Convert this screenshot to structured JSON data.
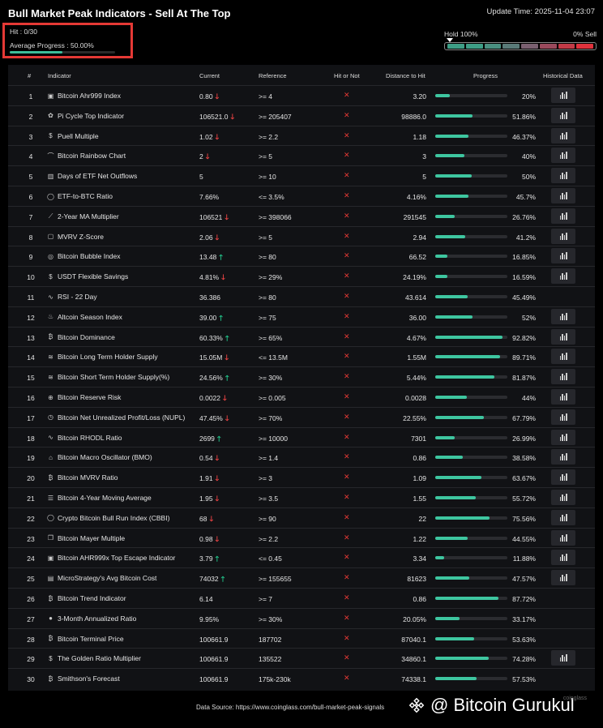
{
  "header": {
    "title": "Bull Market Peak Indicators - Sell At The Top",
    "update_time": "Update Time: 2025-11-04 23:07"
  },
  "summary": {
    "hit": "Hit : 0/30",
    "avg_progress": "Average Progress : 50.00%",
    "avg_progress_value": 50
  },
  "scale": {
    "left_label": "Hold 100%",
    "right_label": "0% Sell",
    "colors": [
      "#3e9e86",
      "#3e9e86",
      "#4a8f80",
      "#5a7a78",
      "#7a6070",
      "#9a4a5c",
      "#c23a46",
      "#e0323c"
    ]
  },
  "table": {
    "headers": [
      "#",
      "Indicator",
      "Current",
      "Reference",
      "Hit or Not",
      "Distance to Hit",
      "Progress",
      "Historical Data"
    ],
    "hit_mark": "✕",
    "rows": [
      {
        "num": "1",
        "icon": "square-logo-icon",
        "name": "Bitcoin Ahr999 Index",
        "current": "0.80",
        "arrow": "down",
        "ref": ">= 4",
        "dist": "3.20",
        "pct_label": "20%",
        "pct": 20,
        "hist": true
      },
      {
        "num": "2",
        "icon": "cycle-icon",
        "name": "Pi Cycle Top Indicator",
        "current": "106521.0",
        "arrow": "down",
        "ref": ">= 205407",
        "dist": "98886.0",
        "pct_label": "51.86%",
        "pct": 51.86,
        "hist": true
      },
      {
        "num": "3",
        "icon": "dollar-icon",
        "name": "Puell Multiple",
        "current": "1.02",
        "arrow": "down",
        "ref": ">= 2.2",
        "dist": "1.18",
        "pct_label": "46.37%",
        "pct": 46.37,
        "hist": true
      },
      {
        "num": "4",
        "icon": "rainbow-icon",
        "name": "Bitcoin Rainbow Chart",
        "current": "2",
        "arrow": "down",
        "ref": ">= 5",
        "dist": "3",
        "pct_label": "40%",
        "pct": 40,
        "hist": true
      },
      {
        "num": "5",
        "icon": "bar-chart-icon",
        "name": "Days of ETF Net Outflows",
        "current": "5",
        "arrow": "",
        "ref": ">= 10",
        "dist": "5",
        "pct_label": "50%",
        "pct": 50,
        "hist": true
      },
      {
        "num": "6",
        "icon": "circle-icon",
        "name": "ETF-to-BTC Ratio",
        "current": "7.66%",
        "arrow": "",
        "ref": "<= 3.5%",
        "dist": "4.16%",
        "pct_label": "45.7%",
        "pct": 45.7,
        "hist": true
      },
      {
        "num": "7",
        "icon": "line-chart-icon",
        "name": "2-Year MA Multiplier",
        "current": "106521",
        "arrow": "down",
        "ref": ">= 398066",
        "dist": "291545",
        "pct_label": "26.76%",
        "pct": 26.76,
        "hist": true
      },
      {
        "num": "8",
        "icon": "square-icon",
        "name": "MVRV Z-Score",
        "current": "2.06",
        "arrow": "down",
        "ref": ">= 5",
        "dist": "2.94",
        "pct_label": "41.2%",
        "pct": 41.2,
        "hist": true
      },
      {
        "num": "9",
        "icon": "bubble-icon",
        "name": "Bitcoin Bubble Index",
        "current": "13.48",
        "arrow": "up",
        "ref": ">= 80",
        "dist": "66.52",
        "pct_label": "16.85%",
        "pct": 16.85,
        "hist": true
      },
      {
        "num": "10",
        "icon": "dollar-icon",
        "name": "USDT Flexible Savings",
        "current": "4.81%",
        "arrow": "down",
        "ref": ">= 29%",
        "dist": "24.19%",
        "pct_label": "16.59%",
        "pct": 16.59,
        "hist": true
      },
      {
        "num": "11",
        "icon": "pulse-icon",
        "name": "RSI - 22 Day",
        "current": "36.386",
        "arrow": "",
        "ref": ">= 80",
        "dist": "43.614",
        "pct_label": "45.49%",
        "pct": 45.49,
        "hist": false
      },
      {
        "num": "12",
        "icon": "flame-icon",
        "name": "Altcoin Season Index",
        "current": "39.00",
        "arrow": "up",
        "ref": ">= 75",
        "dist": "36.00",
        "pct_label": "52%",
        "pct": 52,
        "hist": true
      },
      {
        "num": "13",
        "icon": "bitcoin-icon",
        "name": "Bitcoin Dominance",
        "current": "60.33%",
        "arrow": "up",
        "ref": ">= 65%",
        "dist": "4.67%",
        "pct_label": "92.82%",
        "pct": 92.82,
        "hist": true
      },
      {
        "num": "14",
        "icon": "database-icon",
        "name": "Bitcoin Long Term Holder Supply",
        "current": "15.05M",
        "arrow": "down",
        "ref": "<= 13.5M",
        "dist": "1.55M",
        "pct_label": "89.71%",
        "pct": 89.71,
        "hist": true
      },
      {
        "num": "15",
        "icon": "database-icon",
        "name": "Bitcoin Short Term Holder Supply(%)",
        "current": "24.56%",
        "arrow": "up",
        "ref": ">= 30%",
        "dist": "5.44%",
        "pct_label": "81.87%",
        "pct": 81.87,
        "hist": true
      },
      {
        "num": "16",
        "icon": "reserve-icon",
        "name": "Bitcoin Reserve Risk",
        "current": "0.0022",
        "arrow": "down",
        "ref": ">= 0.005",
        "dist": "0.0028",
        "pct_label": "44%",
        "pct": 44,
        "hist": true
      },
      {
        "num": "17",
        "icon": "clock-icon",
        "name": "Bitcoin Net Unrealized Profit/Loss (NUPL)",
        "current": "47.45%",
        "arrow": "down",
        "ref": ">= 70%",
        "dist": "22.55%",
        "pct_label": "67.79%",
        "pct": 67.79,
        "hist": true
      },
      {
        "num": "18",
        "icon": "pulse-icon",
        "name": "Bitcoin RHODL Ratio",
        "current": "2699",
        "arrow": "up",
        "ref": ">= 10000",
        "dist": "7301",
        "pct_label": "26.99%",
        "pct": 26.99,
        "hist": true
      },
      {
        "num": "19",
        "icon": "bank-icon",
        "name": "Bitcoin Macro Oscillator (BMO)",
        "current": "0.54",
        "arrow": "down",
        "ref": ">= 1.4",
        "dist": "0.86",
        "pct_label": "38.58%",
        "pct": 38.58,
        "hist": true
      },
      {
        "num": "20",
        "icon": "bitcoin-icon",
        "name": "Bitcoin MVRV Ratio",
        "current": "1.91",
        "arrow": "down",
        "ref": ">= 3",
        "dist": "1.09",
        "pct_label": "63.67%",
        "pct": 63.67,
        "hist": true
      },
      {
        "num": "21",
        "icon": "list-icon",
        "name": "Bitcoin 4-Year Moving Average",
        "current": "1.95",
        "arrow": "down",
        "ref": ">= 3.5",
        "dist": "1.55",
        "pct_label": "55.72%",
        "pct": 55.72,
        "hist": true
      },
      {
        "num": "22",
        "icon": "circle-icon",
        "name": "Crypto Bitcoin Bull Run Index (CBBI)",
        "current": "68",
        "arrow": "down",
        "ref": ">= 90",
        "dist": "22",
        "pct_label": "75.56%",
        "pct": 75.56,
        "hist": true
      },
      {
        "num": "23",
        "icon": "copy-icon",
        "name": "Bitcoin Mayer Multiple",
        "current": "0.98",
        "arrow": "down",
        "ref": ">= 2.2",
        "dist": "1.22",
        "pct_label": "44.55%",
        "pct": 44.55,
        "hist": true
      },
      {
        "num": "24",
        "icon": "square-logo-icon",
        "name": "Bitcoin AHR999x Top Escape Indicator",
        "current": "3.79",
        "arrow": "up",
        "ref": "<= 0.45",
        "dist": "3.34",
        "pct_label": "11.88%",
        "pct": 11.88,
        "hist": true
      },
      {
        "num": "25",
        "icon": "chart-icon",
        "name": "MicroStrategy's Avg Bitcoin Cost",
        "current": "74032",
        "arrow": "up",
        "ref": ">= 155655",
        "dist": "81623",
        "pct_label": "47.57%",
        "pct": 47.57,
        "hist": true
      },
      {
        "num": "26",
        "icon": "bitcoin-icon",
        "name": "Bitcoin Trend Indicator",
        "current": "6.14",
        "arrow": "",
        "ref": ">= 7",
        "dist": "0.86",
        "pct_label": "87.72%",
        "pct": 87.72,
        "hist": false
      },
      {
        "num": "27",
        "icon": "dot-icon",
        "name": "3-Month Annualized Ratio",
        "current": "9.95%",
        "arrow": "",
        "ref": ">= 30%",
        "dist": "20.05%",
        "pct_label": "33.17%",
        "pct": 33.17,
        "hist": false
      },
      {
        "num": "28",
        "icon": "bitcoin-icon",
        "name": "Bitcoin Terminal Price",
        "current": "100661.9",
        "arrow": "",
        "ref": "187702",
        "dist": "87040.1",
        "pct_label": "53.63%",
        "pct": 53.63,
        "hist": false
      },
      {
        "num": "29",
        "icon": "dollar-icon",
        "name": "The Golden Ratio Multiplier",
        "current": "100661.9",
        "arrow": "",
        "ref": "135522",
        "dist": "34860.1",
        "pct_label": "74.28%",
        "pct": 74.28,
        "hist": true
      },
      {
        "num": "30",
        "icon": "bitcoin-icon",
        "name": "Smithson's Forecast",
        "current": "100661.9",
        "arrow": "",
        "ref": "175k-230k",
        "dist": "74338.1",
        "pct_label": "57.53%",
        "pct": 57.53,
        "hist": false
      }
    ]
  },
  "footer": {
    "source": "Data Source: https://www.coinglass.com/bull-market-peak-signals",
    "watermark": "@ Bitcoin Gurukul",
    "watermark2": "coinglass"
  }
}
